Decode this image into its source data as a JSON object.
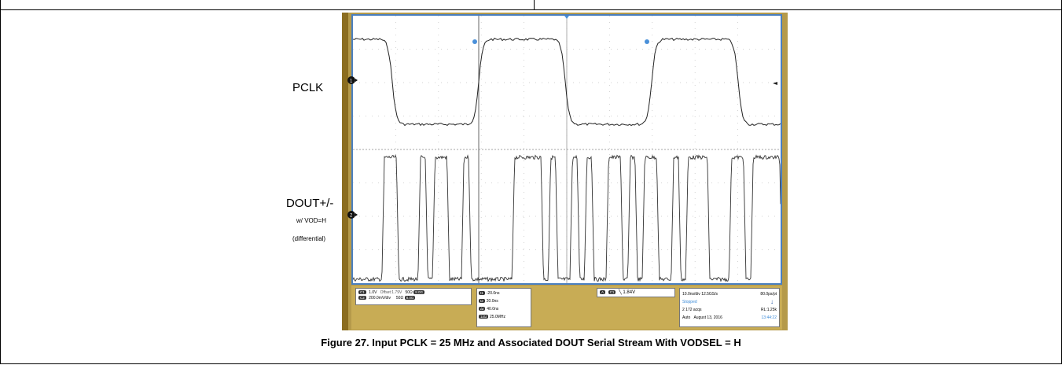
{
  "signals": {
    "pclk": "PCLK",
    "dout": "DOUT+/-",
    "dout_note1": "w/ VOD=H",
    "dout_note2": "(differential)"
  },
  "scope": {
    "ch1": {
      "tag": "C1",
      "scale": "1.0V",
      "offset": "Offset:1.79V",
      "impedance": "50Ω",
      "bw": "8.0G"
    },
    "ch2": {
      "tag": "C2",
      "scale": "200.0mV/div",
      "impedance": "50Ω",
      "bw": "8.0G"
    },
    "cursors": [
      {
        "tag": "t1",
        "value": "-20.0ns"
      },
      {
        "tag": "t2",
        "value": "20.0ns"
      },
      {
        "tag": "Δt",
        "value": "40.0ns"
      },
      {
        "tag": "1/Δt",
        "value": "25.0MHz"
      }
    ],
    "trigger": {
      "tag": "C1",
      "level": "1.84V"
    },
    "timebase": {
      "div": "10.0ns/div",
      "rate": "12.5GS/s",
      "pt": "80.0ps/pt",
      "state": "Stopped",
      "acqs": "2 172 acqs",
      "rl": "RL:1.25k",
      "mode": "Auto",
      "date": "August 13, 2016",
      "time": "13:44:22"
    }
  },
  "caption": "Figure 27. Input PCLK = 25 MHz and Associated DOUT Serial Stream With VODSEL = H"
}
